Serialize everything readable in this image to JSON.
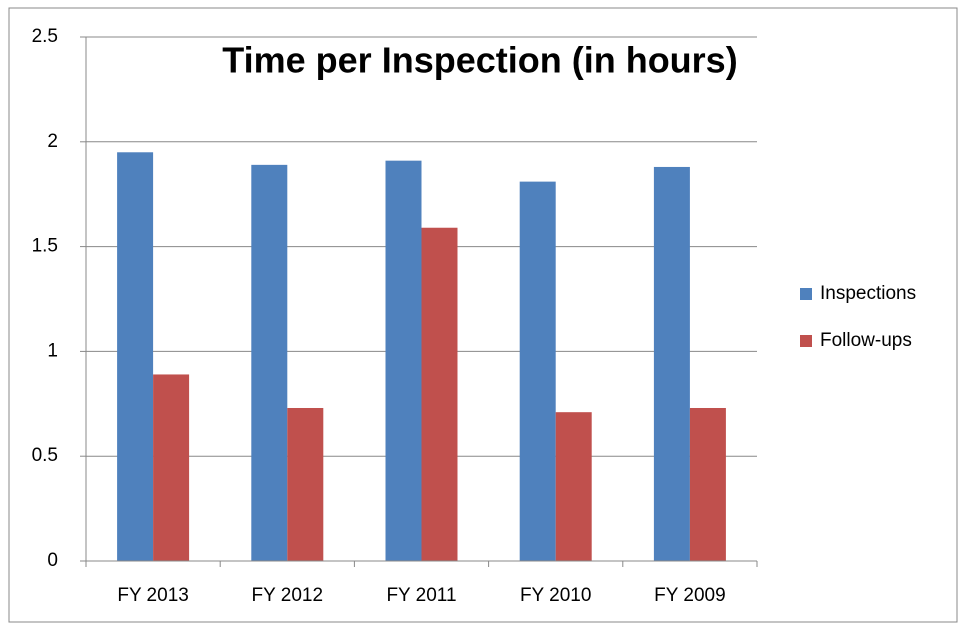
{
  "chart_data": {
    "type": "bar",
    "title": "Time per Inspection (in hours)",
    "categories": [
      "FY 2013",
      "FY 2012",
      "FY 2011",
      "FY 2010",
      "FY 2009"
    ],
    "series": [
      {
        "name": "Inspections",
        "color": "#4f81bd",
        "values": [
          1.95,
          1.89,
          1.91,
          1.81,
          1.88
        ]
      },
      {
        "name": "Follow-ups",
        "color": "#c0504d",
        "values": [
          0.89,
          0.73,
          1.59,
          0.71,
          0.73
        ]
      }
    ],
    "ylim": [
      0,
      2.5
    ],
    "yticks": [
      0,
      0.5,
      1,
      1.5,
      2,
      2.5
    ],
    "grid": true,
    "legend": "right"
  }
}
